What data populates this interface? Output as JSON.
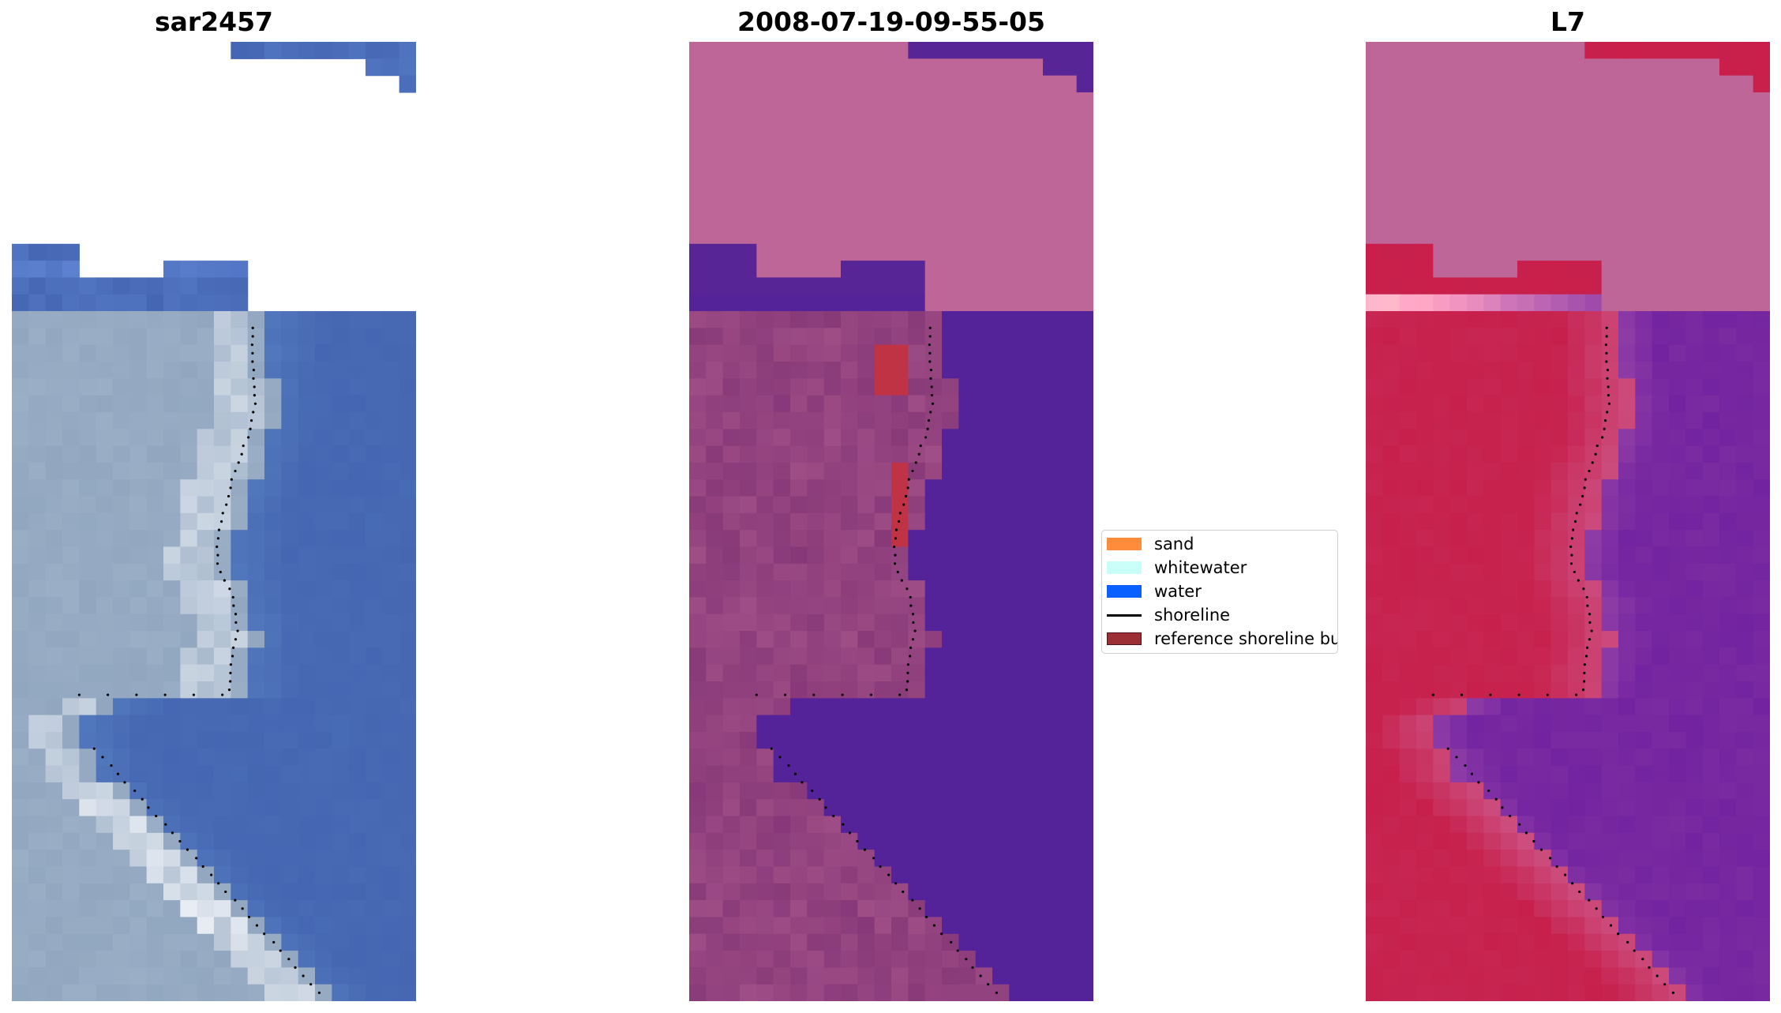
{
  "panels": [
    {
      "title": "sar2457"
    },
    {
      "title": "2008-07-19-09-55-05"
    },
    {
      "title": "L7"
    }
  ],
  "legend": [
    {
      "label": "sand",
      "color": "#ff8c3b"
    },
    {
      "label": "whitewater",
      "color": "#c9fff8"
    },
    {
      "label": "water",
      "color": "#0a5fff"
    },
    {
      "label": "shoreline",
      "color": "#000000"
    },
    {
      "label": "reference shoreline buffer",
      "color": "#9b2f35"
    }
  ],
  "colors": {
    "rgb_water": "#4566b2",
    "rgb_land": "#9aaec6",
    "rgb_surf": "#eef2f8",
    "class_nodata": "#bd6697",
    "class_water": "#54239a",
    "class_land": "#8a3c7a",
    "class_buffer": "#c03344",
    "swir_water": "#7a2ba0",
    "swir_land": "#c7204c"
  }
}
